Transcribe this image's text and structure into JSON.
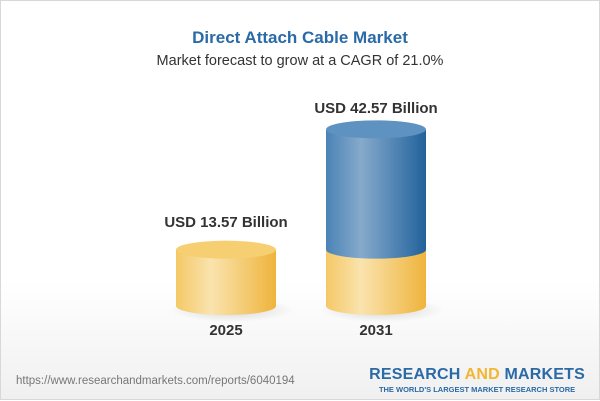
{
  "title": "Direct Attach Cable Market",
  "subtitle": "Market forecast to grow at a CAGR of 21.0%",
  "chart_data": {
    "type": "bar",
    "style": "3d-cylinder",
    "categories": [
      "2025",
      "2031"
    ],
    "values": [
      13.57,
      42.57
    ],
    "data_labels": [
      "USD 13.57 Billion",
      "USD 42.57 Billion"
    ],
    "unit": "USD Billion",
    "colors": {
      "base": "#f2c35a",
      "growth": "#2f6fa8"
    }
  },
  "footer": {
    "url": "https://www.researchandmarkets.com/reports/6040194",
    "logo_part1": "RESEARCH ",
    "logo_part2": "AND",
    "logo_part3": " MARKETS",
    "logo_tagline": "THE WORLD'S LARGEST MARKET RESEARCH STORE"
  }
}
